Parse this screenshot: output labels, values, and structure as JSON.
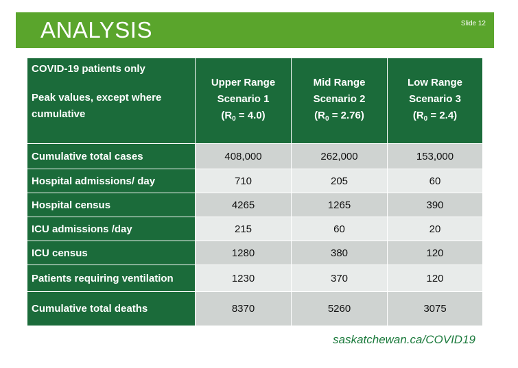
{
  "slide": {
    "title": "ANALYSIS",
    "slide_number": "Slide 12",
    "footer_link": "saskatchewan.ca/COVID19"
  },
  "table": {
    "corner_line1": "COVID-19 patients only",
    "corner_line2": "Peak values, except where cumulative",
    "scenarios": [
      {
        "line1": "Upper Range",
        "line2": "Scenario 1",
        "r_pre": "(R",
        "r_sub": "0",
        "r_post": " = 4.0)"
      },
      {
        "line1": "Mid Range",
        "line2": "Scenario  2",
        "r_pre": "(R",
        "r_sub": "0",
        "r_post": " = 2.76)"
      },
      {
        "line1": "Low Range",
        "line2": "Scenario 3",
        "r_pre": "(R",
        "r_sub": "0",
        "r_post": " = 2.4)"
      }
    ],
    "rows": [
      {
        "label": "Cumulative total cases",
        "values": [
          "408,000",
          "262,000",
          "153,000"
        ]
      },
      {
        "label": "Hospital admissions/ day",
        "values": [
          "710",
          "205",
          "60"
        ]
      },
      {
        "label": "Hospital census",
        "values": [
          "4265",
          "1265",
          "390"
        ]
      },
      {
        "label": "ICU admissions /day",
        "values": [
          "215",
          "60",
          "20"
        ]
      },
      {
        "label": "ICU census",
        "values": [
          "1280",
          "380",
          "120"
        ]
      },
      {
        "label": "Patients requiring ventilation",
        "values": [
          "1230",
          "370",
          "120"
        ]
      },
      {
        "label": "Cumulative total deaths",
        "values": [
          "8370",
          "5260",
          "3075"
        ]
      }
    ]
  },
  "colors": {
    "banner": "#5aa52c",
    "header": "#1b6b3a",
    "row_dark": "#cfd3d1",
    "row_light": "#e8ebea",
    "footer": "#1b7a3c"
  }
}
